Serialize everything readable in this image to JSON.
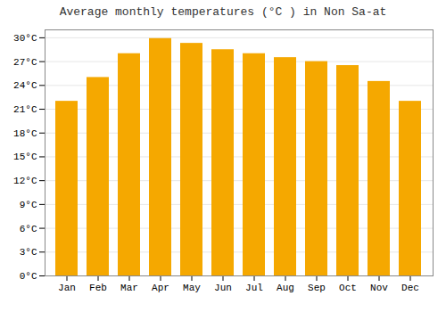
{
  "chart_data": {
    "type": "bar",
    "title": "Average monthly temperatures (°C ) in Non Sa-at",
    "categories": [
      "Jan",
      "Feb",
      "Mar",
      "Apr",
      "May",
      "Jun",
      "Jul",
      "Aug",
      "Sep",
      "Oct",
      "Nov",
      "Dec"
    ],
    "values": [
      22.0,
      25.0,
      28.0,
      29.9,
      29.3,
      28.5,
      28.0,
      27.5,
      27.0,
      26.5,
      24.5,
      22.0
    ],
    "color": "#F5A800",
    "ylim": [
      0,
      31
    ],
    "yticks": [
      {
        "value": 0,
        "label": "0°C"
      },
      {
        "value": 3,
        "label": "3°C"
      },
      {
        "value": 6,
        "label": "6°C"
      },
      {
        "value": 9,
        "label": "9°C"
      },
      {
        "value": 12,
        "label": "12°C"
      },
      {
        "value": 15,
        "label": "15°C"
      },
      {
        "value": 18,
        "label": "18°C"
      },
      {
        "value": 21,
        "label": "21°C"
      },
      {
        "value": 24,
        "label": "24°C"
      },
      {
        "value": 27,
        "label": "27°C"
      },
      {
        "value": 30,
        "label": "30°C"
      }
    ],
    "grid": true
  }
}
